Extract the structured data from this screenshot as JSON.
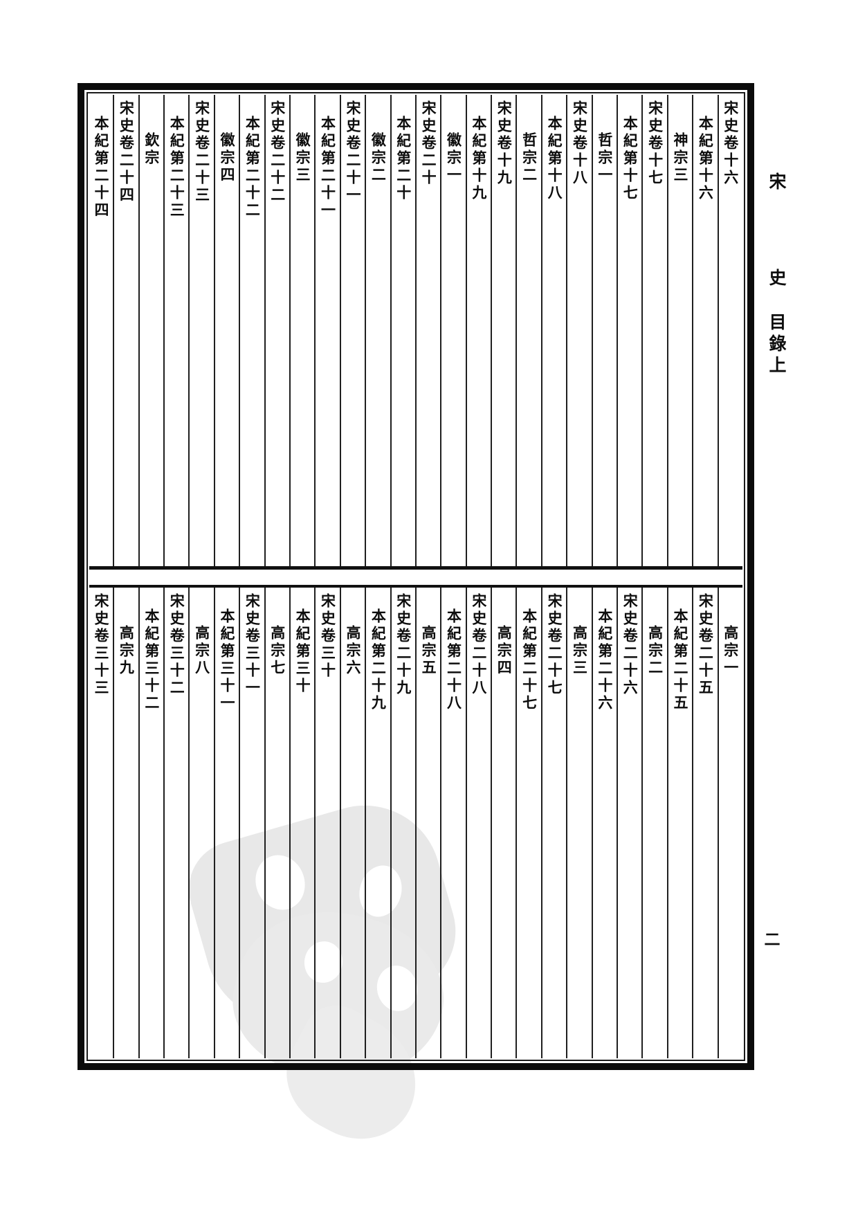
{
  "page": {
    "margin_title": {
      "char1": "宋",
      "char2": "史",
      "section": "目錄上"
    },
    "page_number": "二"
  },
  "colors": {
    "ink": "#0d0d0d",
    "paper": "#ffffff",
    "watermark": "#e8e8e8"
  },
  "top_block": {
    "columns": [
      {
        "text": "宋史卷十六",
        "kind": "juan"
      },
      {
        "text": "本紀第十六",
        "kind": "benji"
      },
      {
        "text": "神宗三",
        "kind": "reign"
      },
      {
        "text": "宋史卷十七",
        "kind": "juan"
      },
      {
        "text": "本紀第十七",
        "kind": "benji"
      },
      {
        "text": "哲宗一",
        "kind": "reign"
      },
      {
        "text": "宋史卷十八",
        "kind": "juan"
      },
      {
        "text": "本紀第十八",
        "kind": "benji"
      },
      {
        "text": "哲宗二",
        "kind": "reign"
      },
      {
        "text": "宋史卷十九",
        "kind": "juan"
      },
      {
        "text": "本紀第十九",
        "kind": "benji"
      },
      {
        "text": "徽宗一",
        "kind": "reign"
      },
      {
        "text": "宋史卷二十",
        "kind": "juan"
      },
      {
        "text": "本紀第二十",
        "kind": "benji"
      },
      {
        "text": "徽宗二",
        "kind": "reign"
      },
      {
        "text": "宋史卷二十一",
        "kind": "juan"
      },
      {
        "text": "本紀第二十一",
        "kind": "benji"
      },
      {
        "text": "徽宗三",
        "kind": "reign"
      },
      {
        "text": "宋史卷二十二",
        "kind": "juan"
      },
      {
        "text": "本紀第二十二",
        "kind": "benji"
      },
      {
        "text": "徽宗四",
        "kind": "reign"
      },
      {
        "text": "宋史卷二十三",
        "kind": "juan"
      },
      {
        "text": "本紀第二十三",
        "kind": "benji"
      },
      {
        "text": "欽宗",
        "kind": "reign"
      },
      {
        "text": "宋史卷二十四",
        "kind": "juan"
      },
      {
        "text": "本紀第二十四",
        "kind": "benji"
      }
    ]
  },
  "bottom_block": {
    "columns": [
      {
        "text": "高宗一",
        "kind": "reign"
      },
      {
        "text": "宋史卷二十五",
        "kind": "juan"
      },
      {
        "text": "本紀第二十五",
        "kind": "benji"
      },
      {
        "text": "高宗二",
        "kind": "reign"
      },
      {
        "text": "宋史卷二十六",
        "kind": "juan"
      },
      {
        "text": "本紀第二十六",
        "kind": "benji"
      },
      {
        "text": "高宗三",
        "kind": "reign"
      },
      {
        "text": "宋史卷二十七",
        "kind": "juan"
      },
      {
        "text": "本紀第二十七",
        "kind": "benji"
      },
      {
        "text": "高宗四",
        "kind": "reign"
      },
      {
        "text": "宋史卷二十八",
        "kind": "juan"
      },
      {
        "text": "本紀第二十八",
        "kind": "benji"
      },
      {
        "text": "高宗五",
        "kind": "reign"
      },
      {
        "text": "宋史卷二十九",
        "kind": "juan"
      },
      {
        "text": "本紀第二十九",
        "kind": "benji"
      },
      {
        "text": "高宗六",
        "kind": "reign"
      },
      {
        "text": "宋史卷三十",
        "kind": "juan"
      },
      {
        "text": "本紀第三十",
        "kind": "benji"
      },
      {
        "text": "高宗七",
        "kind": "reign"
      },
      {
        "text": "宋史卷三十一",
        "kind": "juan"
      },
      {
        "text": "本紀第三十一",
        "kind": "benji"
      },
      {
        "text": "高宗八",
        "kind": "reign"
      },
      {
        "text": "宋史卷三十二",
        "kind": "juan"
      },
      {
        "text": "本紀第三十二",
        "kind": "benji"
      },
      {
        "text": "高宗九",
        "kind": "reign"
      },
      {
        "text": "宋史卷三十三",
        "kind": "juan"
      }
    ]
  }
}
